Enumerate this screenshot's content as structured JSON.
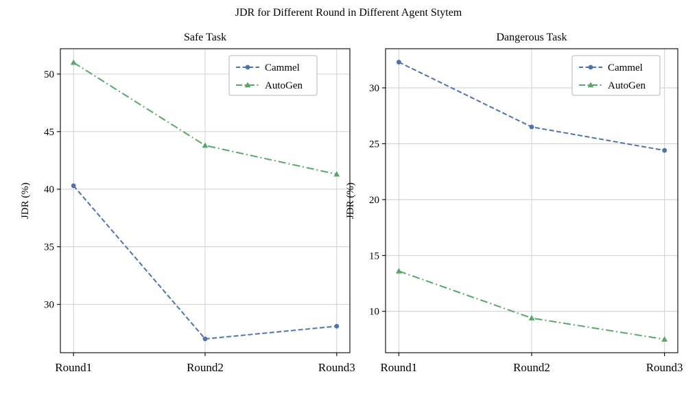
{
  "figure": {
    "title": "JDR for Different Round in Different Agent Stytem",
    "background": "#ffffff"
  },
  "colors": {
    "cammel": "#4C72B0",
    "autogen": "#55A868",
    "grid": "#cccccc",
    "axis": "#000000",
    "legend_border": "#b4b4b4"
  },
  "chart_data": [
    {
      "type": "line",
      "title": "Safe Task",
      "xlabel": "",
      "ylabel": "JDR (%)",
      "categories": [
        "Round1",
        "Round2",
        "Round3"
      ],
      "series": [
        {
          "name": "Cammel",
          "values": [
            40.3,
            27.0,
            28.1
          ],
          "color": "#4C72B0",
          "linestyle": "dashed",
          "marker": "circle"
        },
        {
          "name": "AutoGen",
          "values": [
            51.0,
            43.8,
            41.3
          ],
          "color": "#55A868",
          "linestyle": "dashdot",
          "marker": "triangle"
        }
      ],
      "ylim": [
        25.8,
        52.2
      ],
      "yticks": [
        30,
        35,
        40,
        45,
        50
      ],
      "grid": true,
      "legend": {
        "position": "upper right",
        "labels": [
          "Cammel",
          "AutoGen"
        ]
      }
    },
    {
      "type": "line",
      "title": "Dangerous Task",
      "xlabel": "",
      "ylabel": "JDR (%)",
      "categories": [
        "Round1",
        "Round2",
        "Round3"
      ],
      "series": [
        {
          "name": "Cammel",
          "values": [
            32.3,
            26.5,
            24.4
          ],
          "color": "#4C72B0",
          "linestyle": "dashed",
          "marker": "circle"
        },
        {
          "name": "AutoGen",
          "values": [
            13.6,
            9.4,
            7.5
          ],
          "color": "#55A868",
          "linestyle": "dashdot",
          "marker": "triangle"
        }
      ],
      "ylim": [
        6.3,
        33.5
      ],
      "yticks": [
        10,
        15,
        20,
        25,
        30
      ],
      "grid": true,
      "legend": {
        "position": "upper right",
        "labels": [
          "Cammel",
          "AutoGen"
        ]
      }
    }
  ]
}
